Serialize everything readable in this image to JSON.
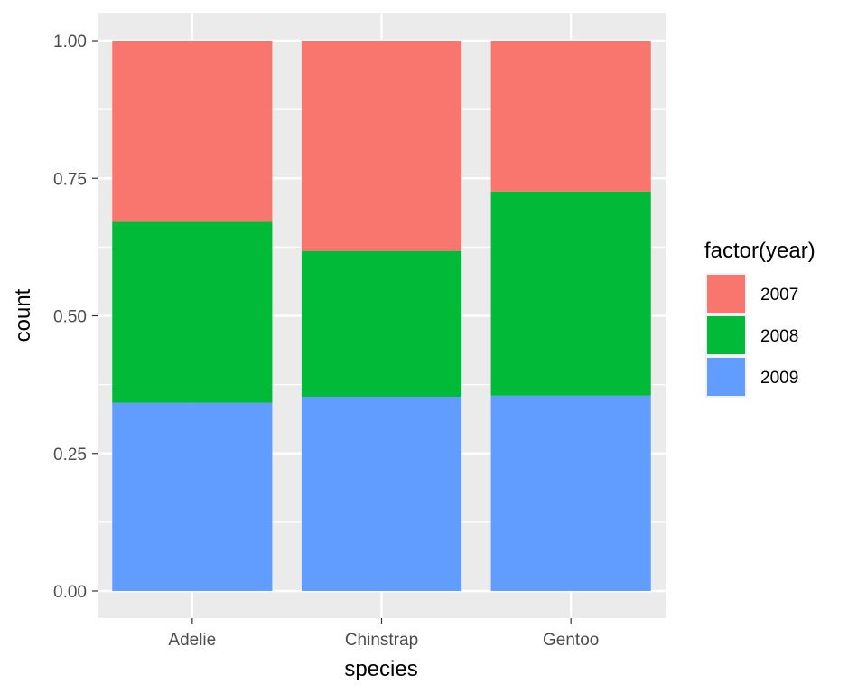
{
  "chart_data": {
    "type": "bar",
    "stacked": true,
    "position": "fill",
    "categories": [
      "Adelie",
      "Chinstrap",
      "Gentoo"
    ],
    "series": [
      {
        "name": "2007",
        "color": "#F8766D",
        "values": [
          0.329,
          0.382,
          0.274
        ]
      },
      {
        "name": "2008",
        "color": "#00BA38",
        "values": [
          0.329,
          0.265,
          0.371
        ]
      },
      {
        "name": "2009",
        "color": "#619CFF",
        "values": [
          0.342,
          0.353,
          0.355
        ]
      }
    ],
    "stack_order_bottom_to_top": [
      "2009",
      "2008",
      "2007"
    ],
    "xlabel": "species",
    "ylabel": "count",
    "ylim": [
      0,
      1
    ],
    "y_ticks": [
      0,
      0.25,
      0.5,
      0.75,
      1.0
    ],
    "y_tick_labels": [
      "0.00",
      "0.25",
      "0.50",
      "0.75",
      "1.00"
    ],
    "legend_title": "factor(year)",
    "legend_position": "right",
    "grid": true,
    "panel_background": "#EBEBEB"
  }
}
